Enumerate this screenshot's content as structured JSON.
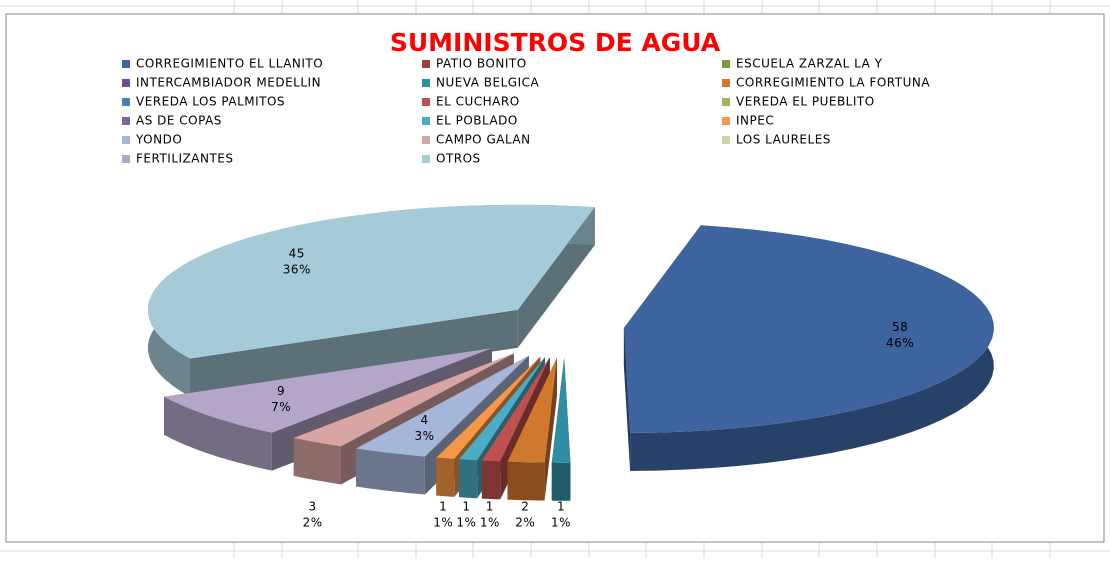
{
  "chart_data": {
    "type": "pie3d",
    "title": "SUMINISTROS DE AGUA",
    "categories": [
      "CORREGIMIENTO EL LLANITO",
      "PATIO BONITO",
      "ESCUELA ZARZAL LA Y",
      "INTERCAMBIADOR MEDELLIN",
      "NUEVA BELGICA",
      "CORREGIMIENTO LA FORTUNA",
      "VEREDA LOS PALMITOS",
      "EL CUCHARO",
      "VEREDA EL PUEBLITO",
      "AS DE COPAS",
      "EL POBLADO",
      "INPEC",
      "YONDO",
      "CAMPO GALAN",
      "LOS LAURELES",
      "FERTILIZANTES",
      "OTROS"
    ],
    "values": [
      58,
      0,
      0,
      0,
      1,
      2,
      0,
      1,
      0,
      0,
      1,
      1,
      4,
      3,
      0,
      9,
      45
    ],
    "percent_labels": [
      "46%",
      null,
      null,
      null,
      "1%",
      "2%",
      null,
      "1%",
      null,
      null,
      "1%",
      "1%",
      "3%",
      "2%",
      null,
      "7%",
      "36%"
    ],
    "colors": [
      "#3e64a0",
      "#a0403e",
      "#7e9b3f",
      "#6a4f8b",
      "#2f8ea3",
      "#d1782f",
      "#4a7ebb",
      "#c0504d",
      "#9bbb59",
      "#8064a2",
      "#4bacc6",
      "#f79646",
      "#a5b6d8",
      "#d9a5a4",
      "#c9d9a6",
      "#b3a6c8",
      "#a6cbd8"
    ],
    "legend": "top"
  }
}
